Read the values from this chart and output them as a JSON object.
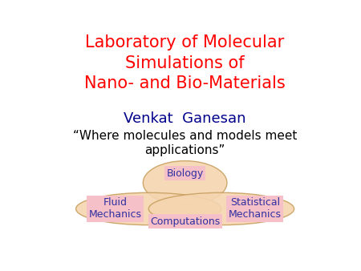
{
  "title_line1": "Laboratory of Molecular",
  "title_line2": "Simulations of",
  "title_line3": "Nano- and Bio-Materials",
  "title_color": "#ff0000",
  "title_fontsize": 15,
  "author": "Venkat  Ganesan",
  "author_color": "#00008B",
  "author_fontsize": 13,
  "quote": "“Where molecules and models meet\napplications”",
  "quote_color": "#000000",
  "quote_fontsize": 11,
  "background_color": "#ffffff",
  "ellipse_facecolor": "#f5d5b0",
  "ellipse_edgecolor": "#c8a060",
  "label_bg_color": "#f5c0c8",
  "label_text_color": "#3030a0",
  "label_fontsize": 9,
  "biology_label": "Biology",
  "fluid_label": "Fluid\nMechanics",
  "statistical_label": "Statistical\nMechanics",
  "computations_label": "Computations"
}
